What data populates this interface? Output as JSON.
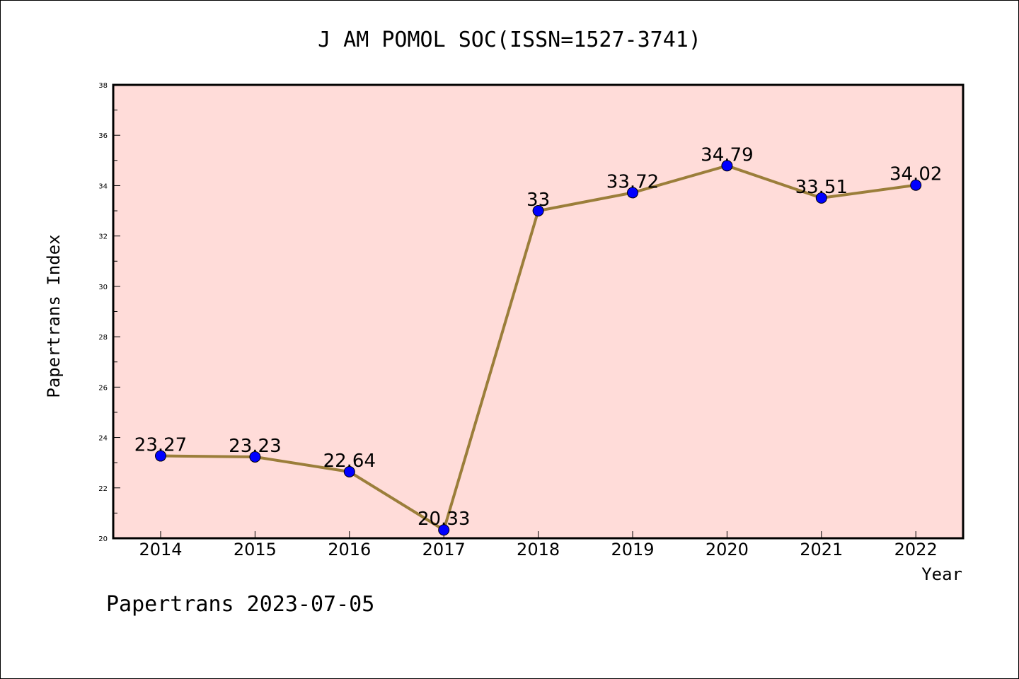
{
  "chart_data": {
    "type": "line",
    "title": "J AM POMOL SOC(ISSN=1527-3741)",
    "xlabel": "Year",
    "ylabel": "Papertrans Index",
    "categories": [
      "2014",
      "2015",
      "2016",
      "2017",
      "2018",
      "2019",
      "2020",
      "2021",
      "2022"
    ],
    "values": [
      23.27,
      23.23,
      22.64,
      20.33,
      33,
      33.72,
      34.79,
      33.51,
      34.02
    ],
    "value_labels": [
      "23.27",
      "23.23",
      "22.64",
      "20.33",
      "33",
      "33.72",
      "34.79",
      "33.51",
      "34.02"
    ],
    "ylim": [
      20,
      38
    ],
    "yticks": [
      "20",
      "22",
      "24",
      "26",
      "28",
      "30",
      "32",
      "34",
      "36",
      "38"
    ],
    "grid": false,
    "colors": {
      "plot_background": "#ffdcd9",
      "line": "#9b7e3a",
      "marker": "#0000ff"
    }
  },
  "footer": "Papertrans 2023-07-05"
}
